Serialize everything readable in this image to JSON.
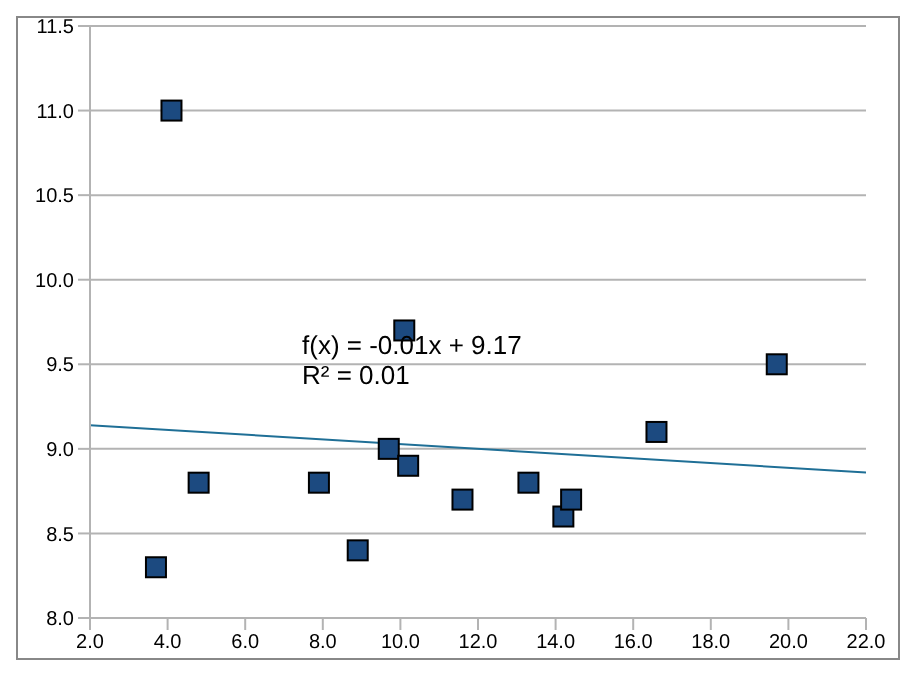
{
  "chart_data": {
    "type": "scatter",
    "grid": "y",
    "annotations": [
      "f(x) = -0.01x + 9.17",
      "R² = 0.01"
    ],
    "xlim": [
      2,
      22
    ],
    "xticks": [
      {
        "value": 2,
        "label": "2.0"
      },
      {
        "value": 4,
        "label": "4.0"
      },
      {
        "value": 6,
        "label": "6.0"
      },
      {
        "value": 8,
        "label": "8.0"
      },
      {
        "value": 10,
        "label": "10.0"
      },
      {
        "value": 12,
        "label": "12.0"
      },
      {
        "value": 14,
        "label": "14.0"
      },
      {
        "value": 16,
        "label": "16.0"
      },
      {
        "value": 18,
        "label": "18.0"
      },
      {
        "value": 20,
        "label": "20.0"
      },
      {
        "value": 22,
        "label": "22.0"
      }
    ],
    "ylim": [
      8,
      11.5
    ],
    "yticks": [
      {
        "value": 8,
        "label": "8.0"
      },
      {
        "value": 8.5,
        "label": "8.5"
      },
      {
        "value": 9,
        "label": "9.0"
      },
      {
        "value": 9.5,
        "label": "9.5"
      },
      {
        "value": 10,
        "label": "10.0"
      },
      {
        "value": 10.5,
        "label": "10.5"
      },
      {
        "value": 11,
        "label": "11.0"
      },
      {
        "value": 11.5,
        "label": "11.5"
      }
    ],
    "series": [
      {
        "marker": "square",
        "color": "#1c4a80",
        "x": [
          4.1,
          3.7,
          4.8,
          7.9,
          8.9,
          9.7,
          10.1,
          10.2,
          11.6,
          13.3,
          14.2,
          14.4,
          16.6,
          19.7
        ],
        "values": [
          11.0,
          8.3,
          8.8,
          8.8,
          8.4,
          9.0,
          9.7,
          8.9,
          8.7,
          8.8,
          8.6,
          8.7,
          9.1,
          9.5
        ]
      },
      {
        "type": "line",
        "marker": "none",
        "color": "#1f6f96",
        "x": [
          2,
          22
        ],
        "values": [
          9.14,
          8.86
        ]
      }
    ]
  }
}
